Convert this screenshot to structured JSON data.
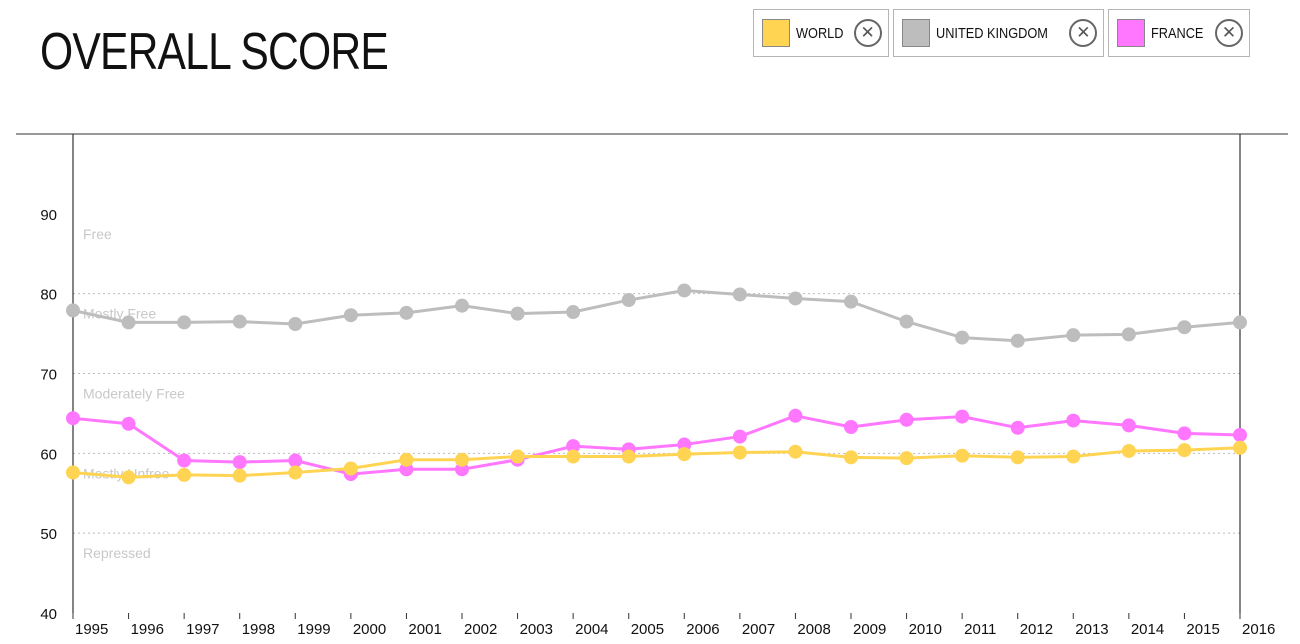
{
  "title": "OVERALL SCORE",
  "legend": [
    {
      "label": "WORLD",
      "color": "#ffd452",
      "close_icon": "close-circle-icon"
    },
    {
      "label": "UNITED KINGDOM",
      "color": "#bdbdbd",
      "close_icon": "close-circle-icon"
    },
    {
      "label": "FRANCE",
      "color": "#ff77ff",
      "close_icon": "close-circle-icon"
    }
  ],
  "chart_data": {
    "type": "line",
    "title": "OVERALL SCORE",
    "xlabel": "",
    "ylabel": "",
    "x": [
      "1995",
      "1996",
      "1997",
      "1998",
      "1999",
      "2000",
      "2001",
      "2002",
      "2003",
      "2004",
      "2005",
      "2006",
      "2007",
      "2008",
      "2009",
      "2010",
      "2011",
      "2012",
      "2013",
      "2014",
      "2015",
      "2016"
    ],
    "ylim": [
      40,
      100
    ],
    "yticks": [
      40,
      50,
      60,
      70,
      80,
      90
    ],
    "grid": "dotted horizontal lines at category boundaries",
    "zones": [
      {
        "label": "Free",
        "min": 80
      },
      {
        "label": "Mostly Free",
        "min": 70
      },
      {
        "label": "Moderately Free",
        "min": 60
      },
      {
        "label": "Mostly Unfree",
        "min": 50
      },
      {
        "label": "Repressed",
        "min": 40
      }
    ],
    "zone_lines": [
      50,
      60,
      70,
      80
    ],
    "series": [
      {
        "name": "UNITED KINGDOM",
        "color": "#bdbdbd",
        "values": [
          77.9,
          76.4,
          76.4,
          76.5,
          76.2,
          77.3,
          77.6,
          78.5,
          77.5,
          77.7,
          79.2,
          80.4,
          79.9,
          79.4,
          79.0,
          76.5,
          74.5,
          74.1,
          74.8,
          74.9,
          75.8,
          76.4
        ]
      },
      {
        "name": "FRANCE",
        "color": "#ff77ff",
        "values": [
          64.4,
          63.7,
          59.1,
          58.9,
          59.1,
          57.4,
          58.0,
          58.0,
          59.2,
          60.9,
          60.5,
          61.1,
          62.1,
          64.7,
          63.3,
          64.2,
          64.6,
          63.2,
          64.1,
          63.5,
          62.5,
          62.3
        ]
      },
      {
        "name": "WORLD",
        "color": "#ffd452",
        "values": [
          57.6,
          57.0,
          57.3,
          57.2,
          57.6,
          58.1,
          59.2,
          59.2,
          59.6,
          59.6,
          59.6,
          59.9,
          60.1,
          60.2,
          59.5,
          59.4,
          59.7,
          59.5,
          59.6,
          60.3,
          60.4,
          60.7
        ]
      }
    ]
  }
}
